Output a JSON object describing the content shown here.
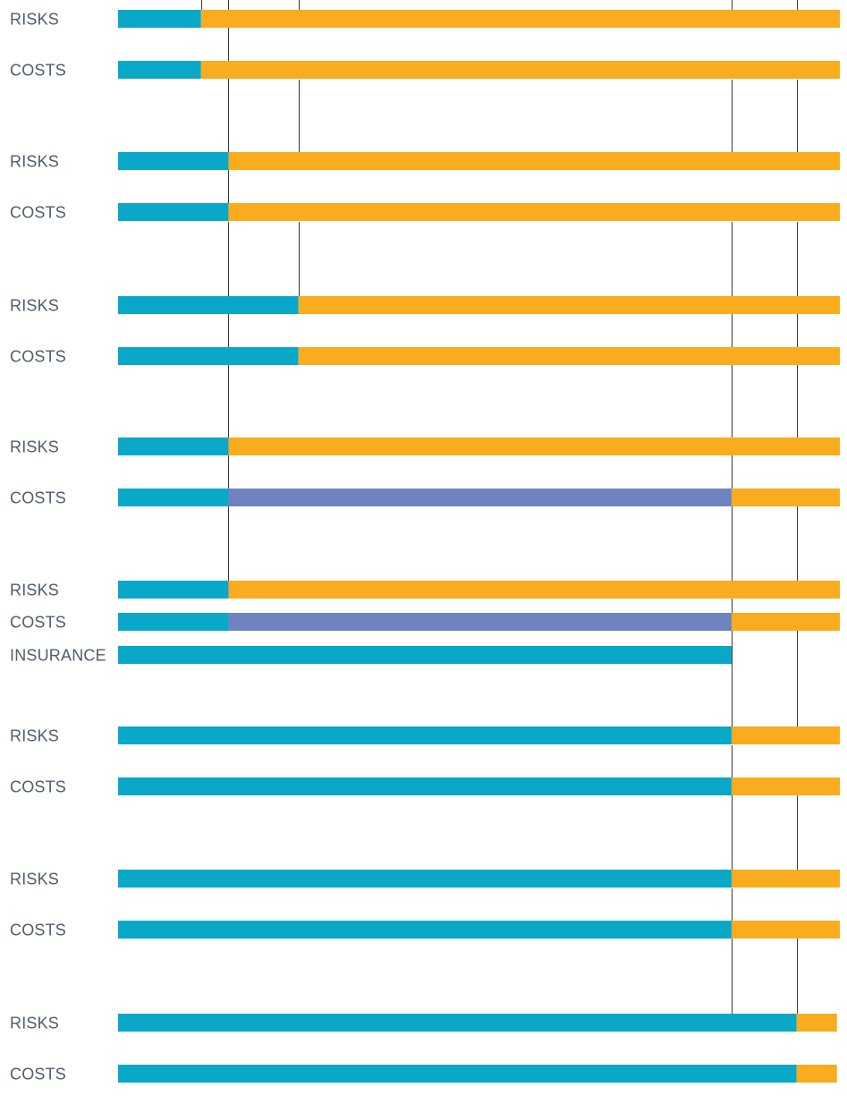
{
  "colors": {
    "teal": "#0aa8c8",
    "orange": "#f9ac1e",
    "purple": "#6f83c0",
    "label": "#4f5d6b",
    "line": "#3a3a3a"
  },
  "chart_data": {
    "type": "bar",
    "orientation": "horizontal stacked",
    "title": "",
    "xlabel": "",
    "ylabel": "",
    "x_range": [
      0,
      100
    ],
    "grid": false,
    "legend": "none",
    "reference_lines": [
      11.5,
      15.3,
      25.0,
      85.0,
      94.0
    ],
    "rows": [
      {
        "label": "RISKS",
        "group": 1,
        "segments": [
          {
            "color": "teal",
            "start": 0,
            "end": 11.5
          },
          {
            "color": "orange",
            "start": 11.5,
            "end": 100
          }
        ]
      },
      {
        "label": "COSTS",
        "group": 1,
        "segments": [
          {
            "color": "teal",
            "start": 0,
            "end": 11.5
          },
          {
            "color": "orange",
            "start": 11.5,
            "end": 100
          }
        ]
      },
      {
        "label": "RISKS",
        "group": 2,
        "segments": [
          {
            "color": "teal",
            "start": 0,
            "end": 15.3
          },
          {
            "color": "orange",
            "start": 15.3,
            "end": 100
          }
        ]
      },
      {
        "label": "COSTS",
        "group": 2,
        "segments": [
          {
            "color": "teal",
            "start": 0,
            "end": 15.3
          },
          {
            "color": "orange",
            "start": 15.3,
            "end": 100
          }
        ]
      },
      {
        "label": "RISKS",
        "group": 3,
        "segments": [
          {
            "color": "teal",
            "start": 0,
            "end": 25.0
          },
          {
            "color": "orange",
            "start": 25.0,
            "end": 100
          }
        ]
      },
      {
        "label": "COSTS",
        "group": 3,
        "segments": [
          {
            "color": "teal",
            "start": 0,
            "end": 25.0
          },
          {
            "color": "orange",
            "start": 25.0,
            "end": 100
          }
        ]
      },
      {
        "label": "RISKS",
        "group": 4,
        "segments": [
          {
            "color": "teal",
            "start": 0,
            "end": 15.3
          },
          {
            "color": "orange",
            "start": 15.3,
            "end": 100
          }
        ]
      },
      {
        "label": "COSTS",
        "group": 4,
        "segments": [
          {
            "color": "teal",
            "start": 0,
            "end": 15.3
          },
          {
            "color": "purple",
            "start": 15.3,
            "end": 85.0
          },
          {
            "color": "orange",
            "start": 85.0,
            "end": 100
          }
        ]
      },
      {
        "label": "RISKS",
        "group": 5,
        "segments": [
          {
            "color": "teal",
            "start": 0,
            "end": 15.3
          },
          {
            "color": "orange",
            "start": 15.3,
            "end": 100
          }
        ]
      },
      {
        "label": "COSTS",
        "group": 5,
        "segments": [
          {
            "color": "teal",
            "start": 0,
            "end": 15.3
          },
          {
            "color": "purple",
            "start": 15.3,
            "end": 85.0
          },
          {
            "color": "orange",
            "start": 85.0,
            "end": 100
          }
        ]
      },
      {
        "label": "INSURANCE",
        "group": 5,
        "segments": [
          {
            "color": "teal",
            "start": 0,
            "end": 85.0
          }
        ]
      },
      {
        "label": "RISKS",
        "group": 6,
        "segments": [
          {
            "color": "teal",
            "start": 0,
            "end": 85.0
          },
          {
            "color": "orange",
            "start": 85.0,
            "end": 100
          }
        ]
      },
      {
        "label": "COSTS",
        "group": 6,
        "segments": [
          {
            "color": "teal",
            "start": 0,
            "end": 85.0
          },
          {
            "color": "orange",
            "start": 85.0,
            "end": 100
          }
        ]
      },
      {
        "label": "RISKS",
        "group": 7,
        "segments": [
          {
            "color": "teal",
            "start": 0,
            "end": 85.0
          },
          {
            "color": "orange",
            "start": 85.0,
            "end": 100
          }
        ]
      },
      {
        "label": "COSTS",
        "group": 7,
        "segments": [
          {
            "color": "teal",
            "start": 0,
            "end": 85.0
          },
          {
            "color": "orange",
            "start": 85.0,
            "end": 100
          }
        ]
      },
      {
        "label": "RISKS",
        "group": 8,
        "segments": [
          {
            "color": "teal",
            "start": 0,
            "end": 94.0
          },
          {
            "color": "orange",
            "start": 94.0,
            "end": 99.6
          }
        ]
      },
      {
        "label": "COSTS",
        "group": 8,
        "segments": [
          {
            "color": "teal",
            "start": 0,
            "end": 94.0
          },
          {
            "color": "orange",
            "start": 94.0,
            "end": 99.6
          }
        ]
      }
    ]
  }
}
